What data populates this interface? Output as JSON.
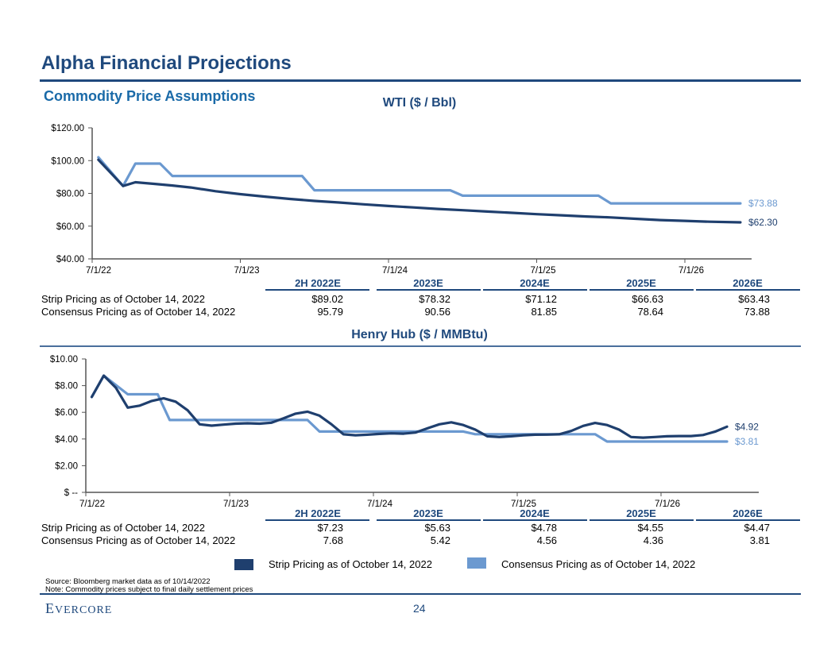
{
  "header": {
    "title": "Alpha Financial Projections",
    "subtitle": "Commodity Price Assumptions"
  },
  "colors": {
    "strip": "#1f3f6e",
    "consensus": "#6b99d0",
    "accent": "#1f497d"
  },
  "wti": {
    "title": "WTI ($ / Bbl)",
    "columns": [
      "2H 2022E",
      "2023E",
      "2024E",
      "2025E",
      "2026E"
    ],
    "rows": [
      {
        "label": "Strip Pricing as of October 14, 2022",
        "values": [
          "$89.02",
          "$78.32",
          "$71.12",
          "$66.63",
          "$63.43"
        ]
      },
      {
        "label": "Consensus Pricing as of October 14, 2022",
        "values": [
          "95.79",
          "90.56",
          "81.85",
          "78.64",
          "73.88"
        ]
      }
    ]
  },
  "henry_hub": {
    "title": "Henry Hub ($ / MMBtu)",
    "columns": [
      "2H 2022E",
      "2023E",
      "2024E",
      "2025E",
      "2026E"
    ],
    "rows": [
      {
        "label": "Strip Pricing as of October 14, 2022",
        "values": [
          "$7.23",
          "$5.63",
          "$4.78",
          "$4.55",
          "$4.47"
        ]
      },
      {
        "label": "Consensus Pricing as of October 14, 2022",
        "values": [
          "7.68",
          "5.42",
          "4.56",
          "4.36",
          "3.81"
        ]
      }
    ]
  },
  "legend": {
    "strip_label": "Strip Pricing as of October 14, 2022",
    "consensus_label": "Consensus Pricing as of October 14, 2022"
  },
  "footer": {
    "source": "Source: Bloomberg market data as of 10/14/2022",
    "note": "Note: Commodity prices subject to final daily settlement prices",
    "logo_first": "E",
    "logo_rest": "VERCORE",
    "page_number": "24"
  },
  "chart_data": [
    {
      "type": "line",
      "title": "WTI ($ / Bbl)",
      "xlabel": "",
      "ylabel": "",
      "x_unit": "months since 7/1/22",
      "x_ticks": [
        0,
        12,
        24,
        36,
        48
      ],
      "x_tick_labels": [
        "7/1/22",
        "7/1/23",
        "7/1/24",
        "7/1/25",
        "7/1/26"
      ],
      "xlim": [
        0,
        53
      ],
      "ylim": [
        40,
        120
      ],
      "y_ticks": [
        40,
        60,
        80,
        100,
        120
      ],
      "y_tick_labels": [
        "$40.00",
        "$60.00",
        "$80.00",
        "$100.00",
        "$120.00"
      ],
      "grid": false,
      "series": [
        {
          "name": "Strip Pricing as of October 14, 2022",
          "end_label": "$62.30",
          "x": [
            0.5,
            2.5,
            3.5,
            5,
            6.5,
            8,
            10,
            12,
            14,
            16,
            18,
            20,
            22,
            24,
            26,
            28,
            30,
            32,
            34,
            36,
            38,
            40,
            42,
            44,
            46,
            48,
            50,
            52.5
          ],
          "y": [
            100.5,
            84.5,
            86.8,
            85.8,
            84.8,
            83.6,
            81.3,
            79.5,
            78.0,
            76.6,
            75.4,
            74.4,
            73.3,
            72.3,
            71.4,
            70.5,
            69.7,
            68.9,
            68.1,
            67.3,
            66.6,
            65.9,
            65.3,
            64.5,
            63.7,
            63.2,
            62.7,
            62.3
          ]
        },
        {
          "name": "Consensus Pricing as of October 14, 2022",
          "end_label": "$73.88",
          "x": [
            0.5,
            2.5,
            3.5,
            5.5,
            6.5,
            17,
            18,
            29,
            30,
            41,
            42,
            52.5
          ],
          "y": [
            102.0,
            84.5,
            98.2,
            98.2,
            90.6,
            90.6,
            81.9,
            81.9,
            78.6,
            78.6,
            73.9,
            73.9
          ]
        }
      ],
      "table": {
        "columns": [
          "2H 2022E",
          "2023E",
          "2024E",
          "2025E",
          "2026E"
        ],
        "strip": [
          89.02,
          78.32,
          71.12,
          66.63,
          63.43
        ],
        "consensus": [
          95.79,
          90.56,
          81.85,
          78.64,
          73.88
        ]
      },
      "legend": "bottom"
    },
    {
      "type": "line",
      "title": "Henry Hub ($ / MMBtu)",
      "xlabel": "",
      "ylabel": "",
      "x_unit": "months since 7/1/22",
      "x_ticks": [
        0,
        12,
        24,
        36,
        48
      ],
      "x_tick_labels": [
        "7/1/22",
        "7/1/23",
        "7/1/24",
        "7/1/25",
        "7/1/26"
      ],
      "xlim": [
        0,
        57.5
      ],
      "ylim": [
        0,
        10
      ],
      "y_ticks": [
        0,
        2,
        4,
        6,
        8,
        10
      ],
      "y_tick_labels": [
        "$ --",
        "$2.00",
        "$4.00",
        "$6.00",
        "$8.00",
        "$10.00"
      ],
      "grid": false,
      "series": [
        {
          "name": "Strip Pricing as of October 14, 2022",
          "end_label": "$4.92",
          "x": [
            0.5,
            1.5,
            2.5,
            3.5,
            4.5,
            5.5,
            6.5,
            7.5,
            8.5,
            9.5,
            10.5,
            11.5,
            12.5,
            13.5,
            14.5,
            15.5,
            16.5,
            17.5,
            18.5,
            19.5,
            20.5,
            21.5,
            22.5,
            23.5,
            24.5,
            25.5,
            26.5,
            27.5,
            28.5,
            29.5,
            30.5,
            31.5,
            32.5,
            33.5,
            34.5,
            35.5,
            36.5,
            37.5,
            38.5,
            39.5,
            40.5,
            41.5,
            42.5,
            43.5,
            44.5,
            45.5,
            46.5,
            47.5,
            48.5,
            49.5,
            50.5,
            51.5,
            52.5,
            53.5
          ],
          "y": [
            7.15,
            8.75,
            7.85,
            6.35,
            6.5,
            6.85,
            7.05,
            6.8,
            6.15,
            5.1,
            5.0,
            5.08,
            5.15,
            5.18,
            5.15,
            5.22,
            5.55,
            5.9,
            6.05,
            5.75,
            5.1,
            4.35,
            4.28,
            4.32,
            4.38,
            4.42,
            4.4,
            4.48,
            4.8,
            5.1,
            5.25,
            5.05,
            4.7,
            4.2,
            4.15,
            4.2,
            4.28,
            4.32,
            4.33,
            4.35,
            4.6,
            4.98,
            5.2,
            5.05,
            4.7,
            4.15,
            4.1,
            4.15,
            4.2,
            4.22,
            4.22,
            4.3,
            4.55,
            4.92
          ]
        },
        {
          "name": "Consensus Pricing as of October 14, 2022",
          "end_label": "$3.81",
          "x": [
            0.5,
            1.5,
            3.5,
            6.0,
            7.0,
            18.5,
            19.5,
            31.5,
            32.5,
            42.5,
            43.5,
            53.5
          ],
          "y": [
            7.15,
            8.75,
            7.35,
            7.35,
            5.42,
            5.42,
            4.56,
            4.56,
            4.36,
            4.36,
            3.81,
            3.81
          ]
        }
      ],
      "table": {
        "columns": [
          "2H 2022E",
          "2023E",
          "2024E",
          "2025E",
          "2026E"
        ],
        "strip": [
          7.23,
          5.63,
          4.78,
          4.55,
          4.47
        ],
        "consensus": [
          7.68,
          5.42,
          4.56,
          4.36,
          3.81
        ]
      },
      "legend": "bottom"
    }
  ]
}
